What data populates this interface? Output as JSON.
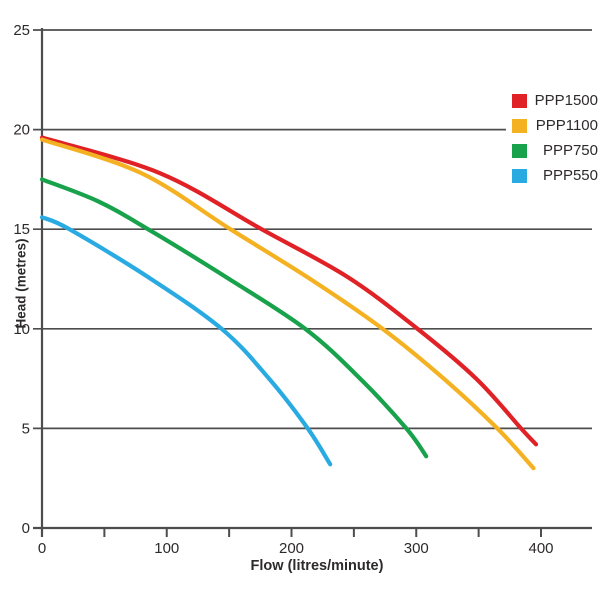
{
  "axes": {
    "x_label": "Flow (litres/minute)",
    "y_label": "Head (metres)",
    "x_tick_values": [
      0,
      100,
      200,
      300,
      400
    ],
    "x_tick_labels": [
      "0",
      "100",
      "200",
      "300",
      "400"
    ],
    "x_minor_tick_values": [
      50,
      150,
      250,
      350
    ],
    "y_tick_values": [
      0,
      5,
      10,
      15,
      20,
      25
    ],
    "y_tick_labels": [
      "0",
      "5",
      "10",
      "15",
      "20",
      "25"
    ],
    "axis_color": "#4d4d4d",
    "text_color": "#2d2a2b"
  },
  "legend": {
    "items": [
      {
        "label": "PPP1500",
        "color": "#e02227"
      },
      {
        "label": "PPP1100",
        "color": "#f4b223"
      },
      {
        "label": "PPP750",
        "color": "#17a24b"
      },
      {
        "label": "PPP550",
        "color": "#29abe2"
      }
    ]
  },
  "chart_data": {
    "type": "line",
    "title": "",
    "xlabel": "Flow (litres/minute)",
    "ylabel": "Head (metres)",
    "xlim": [
      0,
      440
    ],
    "ylim": [
      0,
      25
    ],
    "grid": "horizontal gridlines at every y tick",
    "legend_position": "top-right",
    "series": [
      {
        "name": "PPP1500",
        "color": "#e02227",
        "points": [
          [
            0,
            19.6
          ],
          [
            95,
            17.8
          ],
          [
            176,
            15
          ],
          [
            245,
            12.6
          ],
          [
            301,
            10
          ],
          [
            348,
            7.5
          ],
          [
            384,
            5
          ],
          [
            396,
            4.2
          ]
        ]
      },
      {
        "name": "PPP1100",
        "color": "#f4b223",
        "points": [
          [
            0,
            19.5
          ],
          [
            80,
            17.8
          ],
          [
            151,
            15
          ],
          [
            215,
            12.5
          ],
          [
            273,
            10
          ],
          [
            322,
            7.5
          ],
          [
            365,
            5
          ],
          [
            394,
            3.0
          ]
        ]
      },
      {
        "name": "PPP750",
        "color": "#17a24b",
        "points": [
          [
            0,
            17.5
          ],
          [
            45,
            16.4
          ],
          [
            85,
            15
          ],
          [
            150,
            12.5
          ],
          [
            211,
            10
          ],
          [
            255,
            7.5
          ],
          [
            292,
            5
          ],
          [
            308,
            3.6
          ]
        ]
      },
      {
        "name": "PPP550",
        "color": "#29abe2",
        "points": [
          [
            0,
            15.6
          ],
          [
            22,
            15
          ],
          [
            85,
            12.6
          ],
          [
            144,
            10
          ],
          [
            182,
            7.5
          ],
          [
            213,
            5
          ],
          [
            231,
            3.2
          ]
        ]
      }
    ]
  }
}
